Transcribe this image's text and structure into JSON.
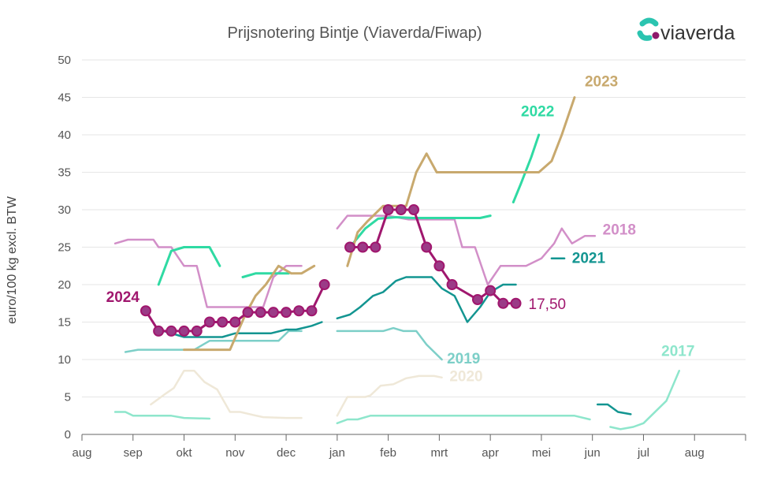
{
  "brand": {
    "name": "viaverda",
    "colors": [
      "#2bc4b0",
      "#8e1a6b"
    ]
  },
  "chart_data": {
    "type": "line",
    "title": "Prijsnotering Bintje (Viaverda/Fiwap)",
    "ylabel": "euro/100 kg excl. BTW",
    "xlabel": "",
    "ylim": [
      0,
      50
    ],
    "yticks": [
      0,
      5,
      10,
      15,
      20,
      25,
      30,
      35,
      40,
      45,
      50
    ],
    "xlim": [
      0,
      13
    ],
    "xticks": [
      {
        "label": "aug",
        "pos": 0
      },
      {
        "label": "sep",
        "pos": 1
      },
      {
        "label": "okt",
        "pos": 2
      },
      {
        "label": "nov",
        "pos": 3
      },
      {
        "label": "dec",
        "pos": 4
      },
      {
        "label": "jan",
        "pos": 5
      },
      {
        "label": "feb",
        "pos": 6
      },
      {
        "label": "mrt",
        "pos": 7
      },
      {
        "label": "apr",
        "pos": 8
      },
      {
        "label": "mei",
        "pos": 9
      },
      {
        "label": "jun",
        "pos": 10
      },
      {
        "label": "jul",
        "pos": 11
      },
      {
        "label": "aug",
        "pos": 12
      }
    ],
    "grid": "horizontal",
    "last_value_label": "17,50",
    "series": [
      {
        "name": "2017",
        "color": "#8ee6cc",
        "width": 2.5,
        "segments": [
          [
            [
              0.65,
              3
            ],
            [
              0.85,
              3
            ],
            [
              1,
              2.5
            ],
            [
              1.25,
              2.5
            ],
            [
              1.75,
              2.5
            ],
            [
              2,
              2.2
            ],
            [
              2.5,
              2.1
            ]
          ],
          [
            [
              5,
              1.5
            ],
            [
              5.2,
              2
            ],
            [
              5.4,
              2
            ],
            [
              5.65,
              2.5
            ],
            [
              6,
              2.5
            ],
            [
              7,
              2.5
            ],
            [
              8,
              2.5
            ],
            [
              9,
              2.5
            ],
            [
              9.65,
              2.5
            ],
            [
              9.95,
              2
            ]
          ],
          [
            [
              10.35,
              1
            ],
            [
              10.55,
              0.7
            ],
            [
              10.8,
              1
            ],
            [
              11,
              1.5
            ],
            [
              11.45,
              4.5
            ],
            [
              11.7,
              8.5
            ]
          ]
        ]
      },
      {
        "name": "2018",
        "color": "#d28fc8",
        "width": 2.5,
        "segments": [
          [
            [
              0.65,
              25.5
            ],
            [
              0.9,
              26
            ],
            [
              1,
              26
            ],
            [
              1.4,
              26
            ],
            [
              1.5,
              25
            ],
            [
              1.75,
              25
            ],
            [
              2,
              22.5
            ],
            [
              2.25,
              22.5
            ],
            [
              2.45,
              17
            ],
            [
              3,
              17
            ],
            [
              3.55,
              17
            ],
            [
              3.75,
              21
            ],
            [
              4,
              22.5
            ],
            [
              4.3,
              22.5
            ]
          ],
          [
            [
              5,
              27.5
            ],
            [
              5.2,
              29.2
            ],
            [
              5.5,
              29.2
            ],
            [
              6,
              29.2
            ],
            [
              6.4,
              28.7
            ],
            [
              7.3,
              28.7
            ],
            [
              7.45,
              25
            ],
            [
              7.7,
              25
            ],
            [
              7.95,
              20
            ],
            [
              8.2,
              22.5
            ],
            [
              8.7,
              22.5
            ],
            [
              9,
              23.5
            ],
            [
              9.25,
              25.5
            ],
            [
              9.4,
              27.5
            ],
            [
              9.6,
              25.5
            ],
            [
              9.85,
              26.5
            ],
            [
              10.05,
              26.5
            ]
          ]
        ]
      },
      {
        "name": "2019",
        "color": "#7dcfc8",
        "width": 2.5,
        "segments": [
          [
            [
              0.85,
              11
            ],
            [
              1.1,
              11.3
            ],
            [
              2,
              11.3
            ],
            [
              2.2,
              11.3
            ],
            [
              2.5,
              12.5
            ],
            [
              3,
              12.5
            ],
            [
              3.85,
              12.5
            ],
            [
              4.05,
              13.8
            ],
            [
              4.3,
              13.8
            ]
          ],
          [
            [
              5,
              13.8
            ],
            [
              5.9,
              13.8
            ],
            [
              6.1,
              14.2
            ],
            [
              6.3,
              13.8
            ],
            [
              6.55,
              13.8
            ],
            [
              6.75,
              12
            ],
            [
              7.05,
              10
            ]
          ]
        ]
      },
      {
        "name": "2020",
        "color": "#efe8d8",
        "width": 2.5,
        "segments": [
          [
            [
              1.35,
              4
            ],
            [
              1.65,
              5.5
            ],
            [
              1.8,
              6.2
            ],
            [
              2,
              8.5
            ],
            [
              2.2,
              8.5
            ],
            [
              2.4,
              7
            ],
            [
              2.65,
              6
            ],
            [
              2.9,
              3
            ],
            [
              3.1,
              3
            ],
            [
              3.35,
              2.6
            ],
            [
              3.55,
              2.3
            ],
            [
              4,
              2.2
            ],
            [
              4.3,
              2.2
            ]
          ],
          [
            [
              5,
              2.5
            ],
            [
              5.2,
              5
            ],
            [
              5.55,
              5
            ],
            [
              5.65,
              5.2
            ],
            [
              5.85,
              6.5
            ],
            [
              6.1,
              6.7
            ],
            [
              6.35,
              7.5
            ],
            [
              6.6,
              7.8
            ],
            [
              6.9,
              7.8
            ],
            [
              7.05,
              7.6
            ]
          ]
        ]
      },
      {
        "name": "2021",
        "color": "#139591",
        "width": 2.5,
        "segments": [
          [
            [
              1.5,
              14
            ],
            [
              2,
              13
            ],
            [
              2.25,
              13
            ],
            [
              2.75,
              13
            ],
            [
              3,
              13.5
            ],
            [
              3.5,
              13.5
            ],
            [
              3.7,
              13.5
            ],
            [
              4,
              14
            ],
            [
              4.2,
              14
            ],
            [
              4.5,
              14.5
            ],
            [
              4.7,
              15
            ]
          ],
          [
            [
              5,
              15.5
            ],
            [
              5.25,
              16
            ],
            [
              5.45,
              17
            ],
            [
              5.7,
              18.5
            ],
            [
              5.9,
              19
            ],
            [
              6.15,
              20.5
            ],
            [
              6.35,
              21
            ],
            [
              6.65,
              21
            ],
            [
              6.85,
              21
            ],
            [
              7.05,
              19.5
            ],
            [
              7.3,
              18.5
            ],
            [
              7.55,
              15
            ],
            [
              7.8,
              17
            ],
            [
              8,
              19
            ],
            [
              8.25,
              20
            ],
            [
              8.5,
              20
            ]
          ],
          [
            [
              9.2,
              23.5
            ],
            [
              9.45,
              23.5
            ]
          ],
          [
            [
              10.1,
              4
            ],
            [
              10.3,
              4
            ],
            [
              10.5,
              3
            ],
            [
              10.75,
              2.7
            ]
          ]
        ]
      },
      {
        "name": "2022",
        "color": "#2fdaa3",
        "width": 3,
        "segments": [
          [
            [
              1.5,
              20
            ],
            [
              1.75,
              24.5
            ],
            [
              2,
              25
            ],
            [
              2.5,
              25
            ],
            [
              2.7,
              22.5
            ]
          ],
          [
            [
              3.15,
              21
            ],
            [
              3.4,
              21.5
            ],
            [
              3.75,
              21.5
            ],
            [
              4.05,
              21.5
            ]
          ],
          [
            [
              5.25,
              25
            ],
            [
              5.55,
              27.5
            ],
            [
              5.8,
              28.8
            ],
            [
              6.15,
              29
            ],
            [
              6.5,
              28.9
            ],
            [
              7,
              28.9
            ],
            [
              7.5,
              28.9
            ],
            [
              7.8,
              28.9
            ],
            [
              8,
              29.2
            ]
          ],
          [
            [
              8.45,
              31
            ],
            [
              8.6,
              33.5
            ],
            [
              8.8,
              37
            ],
            [
              8.95,
              40
            ]
          ]
        ]
      },
      {
        "name": "2023",
        "color": "#c8a96e",
        "width": 3,
        "segments": [
          [
            [
              2,
              11.3
            ],
            [
              2.25,
              11.3
            ],
            [
              2.9,
              11.3
            ],
            [
              3.2,
              16
            ],
            [
              3.4,
              18.5
            ],
            [
              3.6,
              20
            ],
            [
              3.85,
              22.5
            ],
            [
              4.1,
              21.5
            ],
            [
              4.3,
              21.5
            ],
            [
              4.55,
              22.5
            ]
          ],
          [
            [
              5.2,
              22.5
            ],
            [
              5.4,
              27
            ],
            [
              5.6,
              28.5
            ],
            [
              5.9,
              30.5
            ],
            [
              6.15,
              30.5
            ],
            [
              6.35,
              30.5
            ],
            [
              6.55,
              35
            ],
            [
              6.75,
              37.5
            ],
            [
              6.95,
              35
            ],
            [
              7,
              35
            ],
            [
              7.5,
              35
            ],
            [
              8,
              35
            ],
            [
              8.5,
              35
            ],
            [
              8.95,
              35
            ],
            [
              9.2,
              36.5
            ],
            [
              9.4,
              40
            ],
            [
              9.65,
              45
            ]
          ]
        ]
      },
      {
        "name": "2024",
        "color": "#a0176e",
        "width": 3,
        "markers": true,
        "segments": [
          [
            [
              1.25,
              16.5
            ],
            [
              1.5,
              13.8
            ],
            [
              1.75,
              13.8
            ],
            [
              2,
              13.8
            ],
            [
              2.25,
              13.8
            ],
            [
              2.5,
              15
            ],
            [
              2.75,
              15
            ],
            [
              3,
              15
            ],
            [
              3.25,
              16.3
            ],
            [
              3.5,
              16.3
            ],
            [
              3.75,
              16.3
            ],
            [
              4,
              16.3
            ],
            [
              4.25,
              16.5
            ],
            [
              4.5,
              16.5
            ],
            [
              4.75,
              20
            ]
          ],
          [
            [
              5.25,
              25
            ],
            [
              5.5,
              25
            ],
            [
              5.75,
              25
            ],
            [
              6,
              30
            ],
            [
              6.25,
              30
            ],
            [
              6.5,
              30
            ],
            [
              6.75,
              25
            ],
            [
              7,
              22.5
            ],
            [
              7.25,
              20
            ],
            [
              7.75,
              18
            ],
            [
              8,
              19.2
            ],
            [
              8.25,
              17.5
            ],
            [
              8.5,
              17.5
            ]
          ]
        ]
      }
    ],
    "series_labels": [
      {
        "text": "2024",
        "series": "2024",
        "at": [
          0.8,
          17.7
        ],
        "anchor": "middle"
      },
      {
        "text": "2023",
        "series": "2023",
        "at": [
          9.85,
          46.5
        ],
        "anchor": "start"
      },
      {
        "text": "2022",
        "series": "2022",
        "at": [
          8.6,
          42.5
        ],
        "anchor": "start"
      },
      {
        "text": "2018",
        "series": "2018",
        "at": [
          10.2,
          26.7
        ],
        "anchor": "start"
      },
      {
        "text": "2021",
        "series": "2021",
        "at": [
          9.6,
          22.9
        ],
        "anchor": "start"
      },
      {
        "text": "2019",
        "series": "2019",
        "at": [
          7.15,
          9.5
        ],
        "anchor": "start"
      },
      {
        "text": "2020",
        "series": "2020",
        "at": [
          7.2,
          7.1
        ],
        "anchor": "start"
      },
      {
        "text": "2017",
        "series": "2017",
        "at": [
          11.35,
          10.5
        ],
        "anchor": "start"
      }
    ]
  }
}
